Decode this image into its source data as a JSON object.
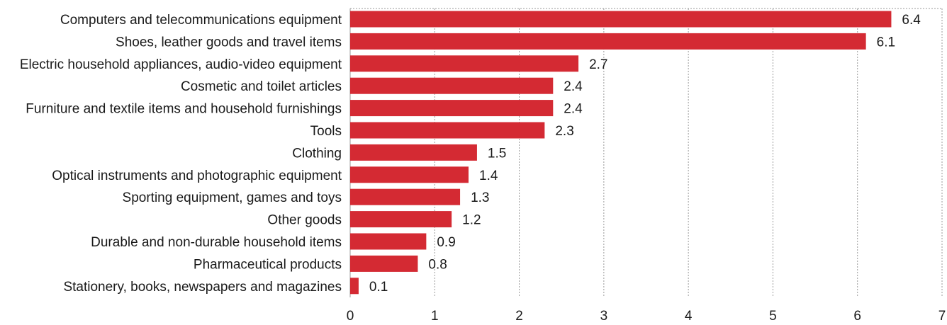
{
  "chart_data": {
    "type": "bar",
    "orientation": "horizontal",
    "categories": [
      "Computers and telecommunications equipment",
      "Shoes, leather goods and travel items",
      "Electric household appliances, audio-video equipment",
      "Cosmetic and toilet articles",
      "Furniture and textile items and household furnishings",
      "Tools",
      "Clothing",
      "Optical instruments and photographic equipment",
      "Sporting equipment, games and toys",
      "Other goods",
      "Durable and non-durable household items",
      "Pharmaceutical products",
      "Stationery, books, newspapers and magazines"
    ],
    "values": [
      6.4,
      6.1,
      2.7,
      2.4,
      2.4,
      2.3,
      1.5,
      1.4,
      1.3,
      1.2,
      0.9,
      0.8,
      0.1
    ],
    "data_labels": [
      "6.4",
      "6.1",
      "2.7",
      "2.4",
      "2.4",
      "2.3",
      "1.5",
      "1.4",
      "1.3",
      "1.2",
      "0.9",
      "0.8",
      "0.1"
    ],
    "xlim": [
      0,
      7
    ],
    "x_ticks": [
      "0",
      "1",
      "2",
      "3",
      "4",
      "5",
      "6",
      "7"
    ],
    "title": "",
    "xlabel": "",
    "ylabel": "",
    "grid": "vertical dotted",
    "bar_color": "#d42a33"
  }
}
